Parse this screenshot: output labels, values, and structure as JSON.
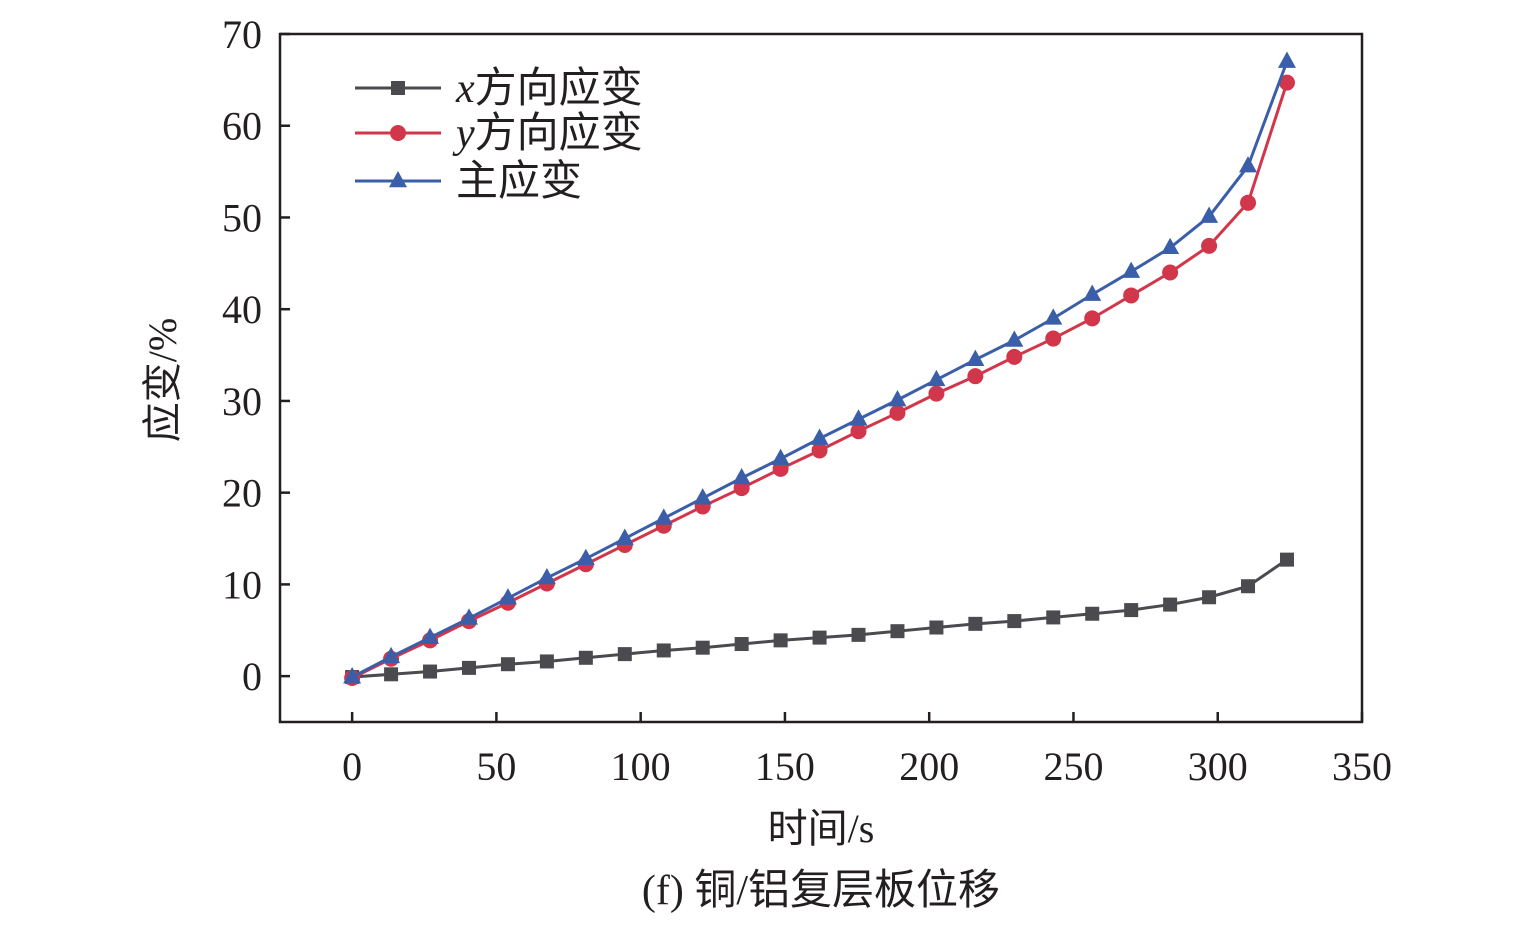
{
  "chart_data": {
    "type": "line",
    "caption": "(f) 铜/铝复层板位移",
    "xlabel": "时间/s",
    "ylabel": "应变/%",
    "xlim": [
      -25,
      350
    ],
    "ylim": [
      -5,
      70
    ],
    "xticks": [
      0,
      50,
      100,
      150,
      200,
      250,
      300,
      350
    ],
    "yticks": [
      0,
      10,
      20,
      30,
      40,
      50,
      60,
      70
    ],
    "grid": false,
    "legend_position": "top-left",
    "x": [
      0,
      13.5,
      27,
      40.5,
      54,
      67.5,
      81,
      94.5,
      108,
      121.5,
      135,
      148.5,
      162,
      175.5,
      189,
      202.5,
      216,
      229.5,
      243,
      256.5,
      270,
      283.5,
      297,
      310.5,
      324
    ],
    "series": [
      {
        "name_prefix": "x",
        "name": "方向应变",
        "marker": "square",
        "color": "#4a4a4f",
        "values": [
          -0.1,
          0.2,
          0.5,
          0.9,
          1.3,
          1.6,
          2.0,
          2.4,
          2.8,
          3.1,
          3.5,
          3.9,
          4.2,
          4.5,
          4.9,
          5.3,
          5.7,
          6.0,
          6.4,
          6.8,
          7.2,
          7.8,
          8.6,
          9.8,
          12.7
        ]
      },
      {
        "name_prefix": "y",
        "name": "方向应变",
        "marker": "circle",
        "color": "#d2364a",
        "values": [
          -0.2,
          1.9,
          3.9,
          6.0,
          8.0,
          10.1,
          12.2,
          14.3,
          16.4,
          18.5,
          20.5,
          22.6,
          24.6,
          26.7,
          28.7,
          30.8,
          32.7,
          34.8,
          36.8,
          39.0,
          41.5,
          44.0,
          46.9,
          51.6,
          64.7
        ]
      },
      {
        "name_prefix": "",
        "name": "主应变",
        "marker": "triangle",
        "color": "#3a5ea8",
        "values": [
          -0.1,
          2.1,
          4.2,
          6.3,
          8.5,
          10.7,
          12.8,
          15.0,
          17.2,
          19.4,
          21.6,
          23.7,
          25.9,
          28.0,
          30.1,
          32.3,
          34.5,
          36.6,
          39.0,
          41.6,
          44.1,
          46.7,
          50.1,
          55.6,
          67.0
        ]
      }
    ]
  }
}
